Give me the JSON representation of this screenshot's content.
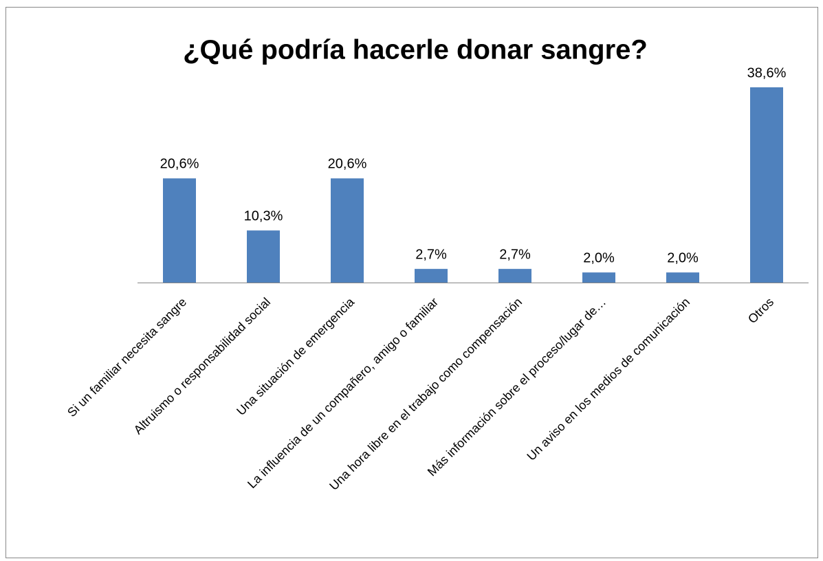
{
  "chart_data": {
    "type": "bar",
    "title": "¿Qué podría hacerle donar sangre?",
    "categories": [
      "Si un familiar necesita sangre",
      "Altruismo o responsabilidad social",
      "Una situación de emergencia",
      "La influencia de un compañero, amigo o familiar",
      "Una hora libre en el trabajo como compensación",
      "Más información sobre el proceso/lugar de…",
      "Un aviso en los medios de comunicación",
      "Otros"
    ],
    "values": [
      20.6,
      10.3,
      20.6,
      2.7,
      2.7,
      2.0,
      2.0,
      38.6
    ],
    "value_labels": [
      "20,6%",
      "10,3%",
      "20,6%",
      "2,7%",
      "2,7%",
      "2,0%",
      "2,0%",
      "38,6%"
    ],
    "color": "#4f81bd"
  }
}
